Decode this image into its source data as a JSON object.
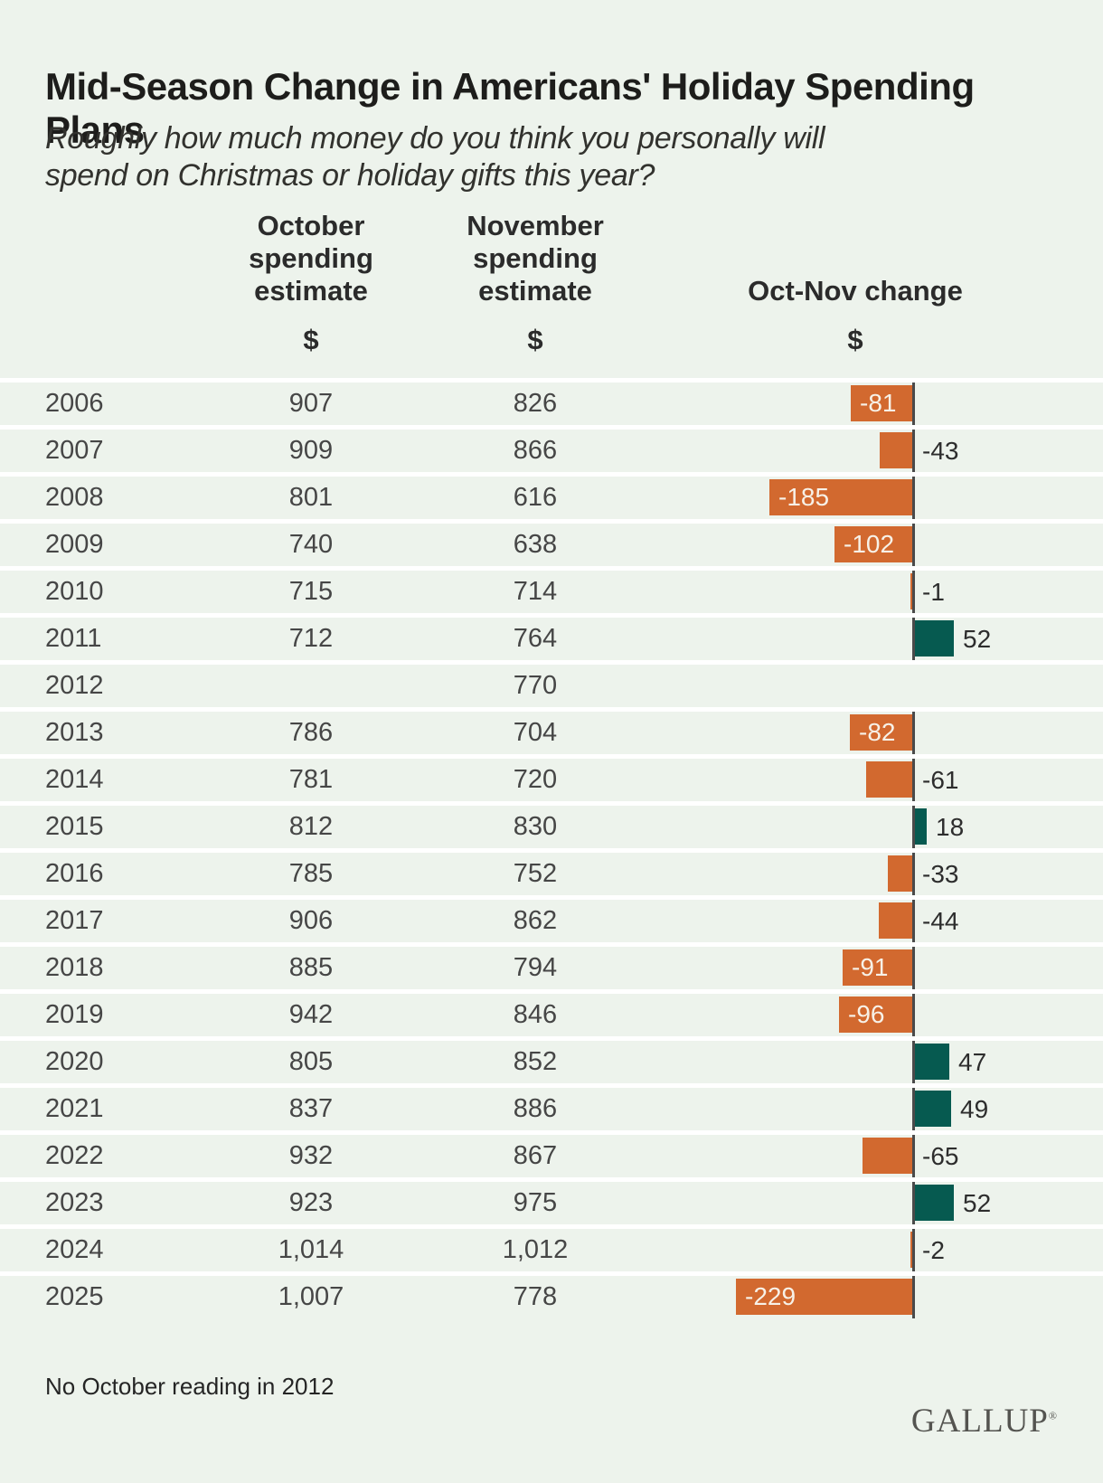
{
  "page": {
    "title": "Mid-Season Change in Americans' Holiday Spending Plans",
    "subtitle": "Roughly how much money do you think you personally will spend on Christmas or holiday gifts this year?",
    "footnote": "No October reading in 2012",
    "brand": "GALLUP",
    "registered_mark": "®"
  },
  "columns": {
    "october_label": "October spending estimate",
    "november_label": "November spending estimate",
    "change_label": "Oct-Nov change",
    "october_unit": "$",
    "november_unit": "$",
    "change_unit": "$"
  },
  "colors": {
    "background": "#edf3ec",
    "separator": "#ffffff",
    "negative_bar": "#d2692f",
    "positive_bar": "#065a50",
    "axis": "#4a4a4a",
    "inside_label": "#f7f1e7",
    "outside_label": "#2d2d2d"
  },
  "rows": [
    {
      "year": "2006",
      "oct": "907",
      "nov": "826",
      "change": -81,
      "change_label": "-81"
    },
    {
      "year": "2007",
      "oct": "909",
      "nov": "866",
      "change": -43,
      "change_label": "-43"
    },
    {
      "year": "2008",
      "oct": "801",
      "nov": "616",
      "change": -185,
      "change_label": "-185"
    },
    {
      "year": "2009",
      "oct": "740",
      "nov": "638",
      "change": -102,
      "change_label": "-102"
    },
    {
      "year": "2010",
      "oct": "715",
      "nov": "714",
      "change": -1,
      "change_label": "-1"
    },
    {
      "year": "2011",
      "oct": "712",
      "nov": "764",
      "change": 52,
      "change_label": "52"
    },
    {
      "year": "2012",
      "oct": "",
      "nov": "770",
      "change": null,
      "change_label": ""
    },
    {
      "year": "2013",
      "oct": "786",
      "nov": "704",
      "change": -82,
      "change_label": "-82"
    },
    {
      "year": "2014",
      "oct": "781",
      "nov": "720",
      "change": -61,
      "change_label": "-61"
    },
    {
      "year": "2015",
      "oct": "812",
      "nov": "830",
      "change": 18,
      "change_label": "18"
    },
    {
      "year": "2016",
      "oct": "785",
      "nov": "752",
      "change": -33,
      "change_label": "-33"
    },
    {
      "year": "2017",
      "oct": "906",
      "nov": "862",
      "change": -44,
      "change_label": "-44"
    },
    {
      "year": "2018",
      "oct": "885",
      "nov": "794",
      "change": -91,
      "change_label": "-91"
    },
    {
      "year": "2019",
      "oct": "942",
      "nov": "846",
      "change": -96,
      "change_label": "-96"
    },
    {
      "year": "2020",
      "oct": "805",
      "nov": "852",
      "change": 47,
      "change_label": "47"
    },
    {
      "year": "2021",
      "oct": "837",
      "nov": "886",
      "change": 49,
      "change_label": "49"
    },
    {
      "year": "2022",
      "oct": "932",
      "nov": "867",
      "change": -65,
      "change_label": "-65"
    },
    {
      "year": "2023",
      "oct": "923",
      "nov": "975",
      "change": 52,
      "change_label": "52"
    },
    {
      "year": "2024",
      "oct": "1,014",
      "nov": "1,012",
      "change": -2,
      "change_label": "-2"
    },
    {
      "year": "2025",
      "oct": "1,007",
      "nov": "778",
      "change": -229,
      "change_label": "-229"
    }
  ],
  "chart_data": {
    "type": "bar",
    "orientation": "horizontal",
    "title": "Mid-Season Change in Americans' Holiday Spending Plans",
    "subtitle": "Roughly how much money do you think you personally will spend on Christmas or holiday gifts this year?",
    "categories": [
      "2006",
      "2007",
      "2008",
      "2009",
      "2010",
      "2011",
      "2012",
      "2013",
      "2014",
      "2015",
      "2016",
      "2017",
      "2018",
      "2019",
      "2020",
      "2021",
      "2022",
      "2023",
      "2024",
      "2025"
    ],
    "series": [
      {
        "name": "October spending estimate ($)",
        "values": [
          907,
          909,
          801,
          740,
          715,
          712,
          null,
          786,
          781,
          812,
          785,
          906,
          885,
          942,
          805,
          837,
          932,
          923,
          1014,
          1007
        ]
      },
      {
        "name": "November spending estimate ($)",
        "values": [
          826,
          866,
          616,
          638,
          714,
          764,
          770,
          704,
          720,
          830,
          752,
          862,
          794,
          846,
          852,
          886,
          867,
          975,
          1012,
          778
        ]
      },
      {
        "name": "Oct-Nov change ($)",
        "values": [
          -81,
          -43,
          -185,
          -102,
          -1,
          52,
          null,
          -82,
          -61,
          18,
          -33,
          -44,
          -91,
          -96,
          47,
          49,
          -65,
          52,
          -2,
          -229
        ]
      }
    ],
    "bar_series_plotted": "Oct-Nov change ($)",
    "xlim": [
      -240,
      60
    ],
    "negative_color": "#d2692f",
    "positive_color": "#065a50",
    "grid": false,
    "legend_position": "none",
    "annotations": [
      "No October reading in 2012"
    ]
  }
}
